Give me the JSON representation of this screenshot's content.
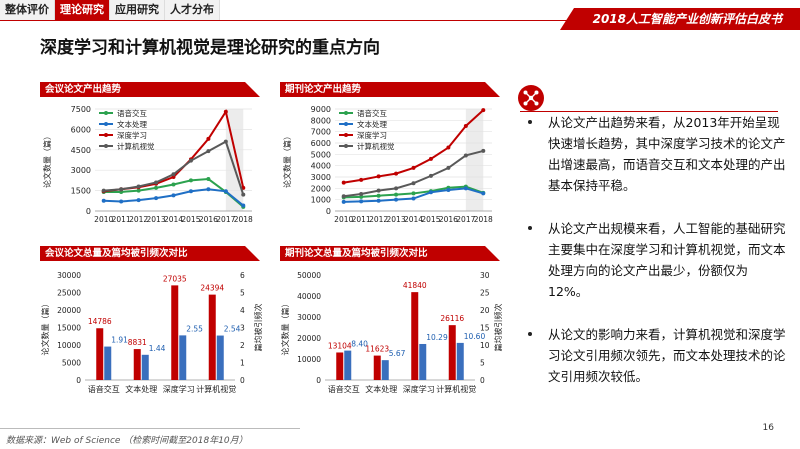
{
  "tabs": [
    {
      "label": "整体评价",
      "active": false
    },
    {
      "label": "理论研究",
      "active": true
    },
    {
      "label": "应用研究",
      "active": false
    },
    {
      "label": "人才分布",
      "active": false
    }
  ],
  "banner": "2018人工智能产业创新评估白皮书",
  "page_title": "深度学习和计算机视觉是理论研究的重点方向",
  "colors": {
    "accent": "#c00000",
    "series": [
      "#2ca24f",
      "#1f6fc5",
      "#c00000",
      "#595959"
    ],
    "bar_count": "#c00000",
    "bar_cite": "#3a6fbd"
  },
  "right_icon": "network-nodes-icon",
  "bullets": [
    "从论文产出趋势来看，从2013年开始呈现快速增长趋势，其中深度学习技术的论文产出增速最高，而语音交互和文本处理的产出基本保持平稳。",
    "从论文产出规模来看，人工智能的基础研究主要集中在深度学习和计算机视觉，而文本处理方向的论文产出最少，份额仅为12%。",
    "从论文的影响力来看，计算机视觉和深度学习论文引用频次领先，而文本处理技术的论文引用频次较低。"
  ],
  "footer": {
    "source": "数据来源：Web of Science （检索时间截至2018年10月）",
    "page": "16"
  },
  "chart_data": [
    {
      "type": "line",
      "title": "会议论文产出趋势",
      "ylabel": "论文数量（篇）",
      "ylim": [
        0,
        7500
      ],
      "yticks": [
        0,
        1500,
        3000,
        4500,
        6000,
        7500
      ],
      "x": [
        "2010",
        "2011",
        "2012",
        "2013",
        "2014",
        "2015",
        "2016",
        "2017",
        "2018"
      ],
      "shaded_x": [
        "2018"
      ],
      "legend_position": "top-left",
      "series": [
        {
          "name": "语音交互",
          "values": [
            1400,
            1400,
            1500,
            1700,
            1950,
            2250,
            2350,
            1400,
            300
          ]
        },
        {
          "name": "文本处理",
          "values": [
            750,
            700,
            800,
            950,
            1150,
            1450,
            1600,
            1450,
            400
          ]
        },
        {
          "name": "深度学习",
          "values": [
            1450,
            1600,
            1750,
            2000,
            2500,
            3800,
            5300,
            7300,
            1700
          ]
        },
        {
          "name": "计算机视觉",
          "values": [
            1500,
            1600,
            1800,
            2100,
            2700,
            3700,
            4400,
            5100,
            1200
          ]
        }
      ]
    },
    {
      "type": "line",
      "title": "期刊论文产出趋势",
      "ylabel": "论文数量（篇）",
      "ylim": [
        0,
        9000
      ],
      "yticks": [
        0,
        1000,
        2000,
        3000,
        4000,
        5000,
        6000,
        7000,
        8000,
        9000
      ],
      "x": [
        "2010",
        "2011",
        "2012",
        "2013",
        "2014",
        "2015",
        "2016",
        "2017",
        "2018"
      ],
      "shaded_x": [
        "2018"
      ],
      "legend_position": "top-left",
      "series": [
        {
          "name": "语音交互",
          "values": [
            1200,
            1250,
            1350,
            1450,
            1550,
            1750,
            2050,
            2150,
            1600
          ]
        },
        {
          "name": "文本处理",
          "values": [
            800,
            850,
            900,
            1000,
            1100,
            1650,
            1850,
            2000,
            1550
          ]
        },
        {
          "name": "深度学习",
          "values": [
            2500,
            2750,
            3050,
            3300,
            3800,
            4600,
            5600,
            7500,
            8900
          ]
        },
        {
          "name": "计算机视觉",
          "values": [
            1300,
            1500,
            1800,
            2000,
            2450,
            3100,
            3800,
            4900,
            5300
          ]
        }
      ]
    },
    {
      "type": "bar",
      "title": "会议论文总量及篇均被引频次对比",
      "categories": [
        "语音交互",
        "文本处理",
        "深度学习",
        "计算机视觉"
      ],
      "ylabel": "论文数量（篇）",
      "y2label": "篇均被引频次",
      "ylim": [
        0,
        30000
      ],
      "yticks": [
        0,
        5000,
        10000,
        15000,
        20000,
        25000,
        30000
      ],
      "y2lim": [
        0,
        6
      ],
      "y2ticks": [
        0,
        1,
        2,
        3,
        4,
        5,
        6
      ],
      "series": [
        {
          "values": [
            14786,
            8831,
            27035,
            24394
          ],
          "labels": [
            "14786",
            "8831",
            "27035",
            "24394"
          ],
          "axis": "left"
        },
        {
          "values": [
            1.91,
            1.44,
            2.55,
            2.54
          ],
          "labels": [
            "1.91",
            "1.44",
            "2.55",
            "2.54"
          ],
          "axis": "right"
        }
      ]
    },
    {
      "type": "bar",
      "title": "期刊论文总量及篇均被引频次对比",
      "categories": [
        "语音交互",
        "文本处理",
        "深度学习",
        "计算机视觉"
      ],
      "ylabel": "论文数量（篇）",
      "y2label": "篇均被引频次",
      "ylim": [
        0,
        50000
      ],
      "yticks": [
        0,
        10000,
        20000,
        30000,
        40000,
        50000
      ],
      "y2lim": [
        0,
        30
      ],
      "y2ticks": [
        0,
        5,
        10,
        15,
        20,
        25,
        30
      ],
      "series": [
        {
          "values": [
            13104,
            11623,
            41840,
            26116
          ],
          "labels": [
            "13104",
            "11623",
            "41840",
            "26116"
          ],
          "axis": "left"
        },
        {
          "values": [
            8.4,
            5.67,
            10.29,
            10.6
          ],
          "labels": [
            "8.40",
            "5.67",
            "10.29",
            "10.60"
          ],
          "axis": "right"
        }
      ]
    }
  ]
}
